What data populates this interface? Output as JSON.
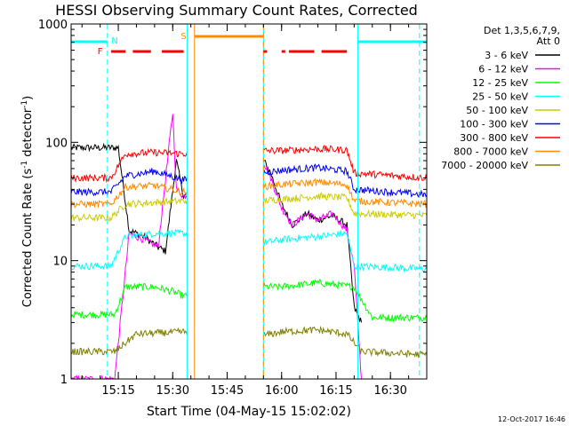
{
  "chart_data": {
    "type": "line",
    "title": "HESSI Observing Summary Count Rates, Corrected",
    "xlabel": "Start Time (04-May-15 15:02:02)",
    "ylabel": "Corrected Count Rate (s⁻¹ detector⁻¹)",
    "ylabel_parts": [
      "Corrected Count Rate (s",
      "-1",
      " detector",
      "-1",
      ")"
    ],
    "y_scale": "log",
    "ylim": [
      1,
      1000
    ],
    "xlim": [
      "15:02",
      "16:40"
    ],
    "x_ticks": [
      "15:15",
      "15:30",
      "15:45",
      "16:00",
      "16:15",
      "16:30"
    ],
    "y_ticks": [
      "1",
      "10",
      "100",
      "1000"
    ],
    "timestamp": "12-Oct-2017 16:46",
    "legend": {
      "header": [
        "Det 1,3,5,6,7,9,",
        "Att 0"
      ],
      "placement": "right"
    },
    "series": [
      {
        "name": "3 - 6 keV",
        "color": "#000000",
        "x": [
          "15:02",
          "15:15",
          "15:18",
          "15:22",
          "15:26",
          "15:28",
          "15:31",
          "15:33",
          "15:54",
          "15:57",
          "16:00",
          "16:03",
          "16:07",
          "16:10",
          "16:14",
          "16:18",
          "16:20",
          "16:22"
        ],
        "values": [
          90,
          90,
          18,
          16,
          13,
          12,
          70,
          35,
          80,
          55,
          30,
          20,
          25,
          22,
          24,
          20,
          4,
          3
        ]
      },
      {
        "name": "6 - 12 keV",
        "color": "#ff00ff",
        "x": [
          "15:02",
          "15:10",
          "15:14",
          "15:18",
          "15:22",
          "15:26",
          "15:30",
          "15:31",
          "15:33",
          "15:54",
          "15:57",
          "16:00",
          "16:03",
          "16:07",
          "16:10",
          "16:14",
          "16:18",
          "16:20",
          "16:22"
        ],
        "values": [
          1,
          1,
          1,
          17,
          15,
          13,
          180,
          40,
          35,
          80,
          50,
          28,
          20,
          25,
          22,
          25,
          18,
          9,
          1
        ]
      },
      {
        "name": "12 - 25 keV",
        "color": "#00ff00",
        "x": [
          "15:02",
          "15:14",
          "15:17",
          "15:25",
          "15:30",
          "15:33",
          "15:54",
          "16:00",
          "16:10",
          "16:20",
          "16:25",
          "16:40"
        ],
        "values": [
          3.5,
          3.5,
          6,
          6,
          5.5,
          5,
          6,
          6,
          6.5,
          6,
          3.3,
          3.3
        ]
      },
      {
        "name": "25 - 50 keV",
        "color": "#00ffff",
        "x": [
          "15:02",
          "15:13",
          "15:17",
          "15:25",
          "15:33",
          "15:54",
          "16:00",
          "16:10",
          "16:18",
          "16:20",
          "16:40"
        ],
        "values": [
          9,
          9,
          16,
          17,
          17,
          14,
          15,
          16,
          17,
          9,
          8.5
        ]
      },
      {
        "name": "50 - 100 keV",
        "color": "#cccc00",
        "x": [
          "15:02",
          "15:13",
          "15:17",
          "15:25",
          "15:33",
          "15:54",
          "16:00",
          "16:10",
          "16:18",
          "16:20",
          "16:40"
        ],
        "values": [
          23,
          23,
          30,
          31,
          32,
          32,
          33,
          35,
          34,
          25,
          24
        ]
      },
      {
        "name": "100 - 300 keV",
        "color": "#0000ff",
        "x": [
          "15:02",
          "15:13",
          "15:17",
          "15:25",
          "15:33",
          "15:54",
          "16:00",
          "16:10",
          "16:18",
          "16:20",
          "16:40"
        ],
        "values": [
          38,
          38,
          52,
          57,
          48,
          55,
          58,
          61,
          57,
          40,
          36
        ]
      },
      {
        "name": "300 - 800 keV",
        "color": "#ff0000",
        "x": [
          "15:02",
          "15:13",
          "15:17",
          "15:25",
          "15:33",
          "15:54",
          "16:00",
          "16:10",
          "16:18",
          "16:20",
          "16:40"
        ],
        "values": [
          50,
          50,
          80,
          82,
          80,
          85,
          85,
          88,
          86,
          55,
          50
        ]
      },
      {
        "name": "800 - 7000 keV",
        "color": "#ff8c00",
        "x": [
          "15:02",
          "15:13",
          "15:17",
          "15:25",
          "15:33",
          "15:54",
          "16:00",
          "16:10",
          "16:18",
          "16:20",
          "16:40"
        ],
        "values": [
          30,
          30,
          42,
          43,
          38,
          42,
          44,
          46,
          44,
          32,
          30
        ]
      },
      {
        "name": "7000 - 20000 keV",
        "color": "#808000",
        "x": [
          "15:02",
          "15:14",
          "15:20",
          "15:33",
          "15:54",
          "16:00",
          "16:10",
          "16:18",
          "16:22",
          "16:40"
        ],
        "values": [
          1.7,
          1.7,
          2.4,
          2.5,
          2.3,
          2.5,
          2.6,
          2.4,
          1.7,
          1.6
        ]
      }
    ],
    "flags": [
      {
        "label": "",
        "color": "#00ffff",
        "segments": [
          [
            "15:02",
            "15:12"
          ],
          [
            "16:21",
            "16:40"
          ]
        ]
      },
      {
        "label": "N",
        "color": "#00ffff",
        "segments": []
      },
      {
        "label": "F",
        "color": "#ff0000",
        "segments": [
          [
            "15:13",
            "15:17"
          ],
          [
            "15:19",
            "15:24"
          ],
          [
            "15:27",
            "15:33"
          ],
          [
            "15:55",
            "15:56"
          ],
          [
            "16:00",
            "16:01"
          ],
          [
            "16:02",
            "16:09"
          ],
          [
            "16:11",
            "16:18"
          ]
        ]
      },
      {
        "label": "S",
        "color": "#ff8c00",
        "segments": [
          [
            "15:36",
            "15:55"
          ]
        ]
      }
    ],
    "vlines": [
      {
        "time": "15:02",
        "color": "#00ffff",
        "style": "solid"
      },
      {
        "time": "15:12",
        "color": "#00ffff",
        "style": "dashed"
      },
      {
        "time": "15:34",
        "color": "#00ffff",
        "style": "solid"
      },
      {
        "time": "15:55",
        "color": "#00ffff",
        "style": "solid"
      },
      {
        "time": "16:21",
        "color": "#00ffff",
        "style": "solid"
      },
      {
        "time": "16:38",
        "color": "#00ffff",
        "style": "dashed"
      },
      {
        "time": "15:36",
        "color": "#ff8c00",
        "style": "solid"
      },
      {
        "time": "15:55",
        "color": "#ff8c00",
        "style": "dashed"
      }
    ],
    "gap": [
      "15:34",
      "15:55"
    ],
    "grid": false
  }
}
